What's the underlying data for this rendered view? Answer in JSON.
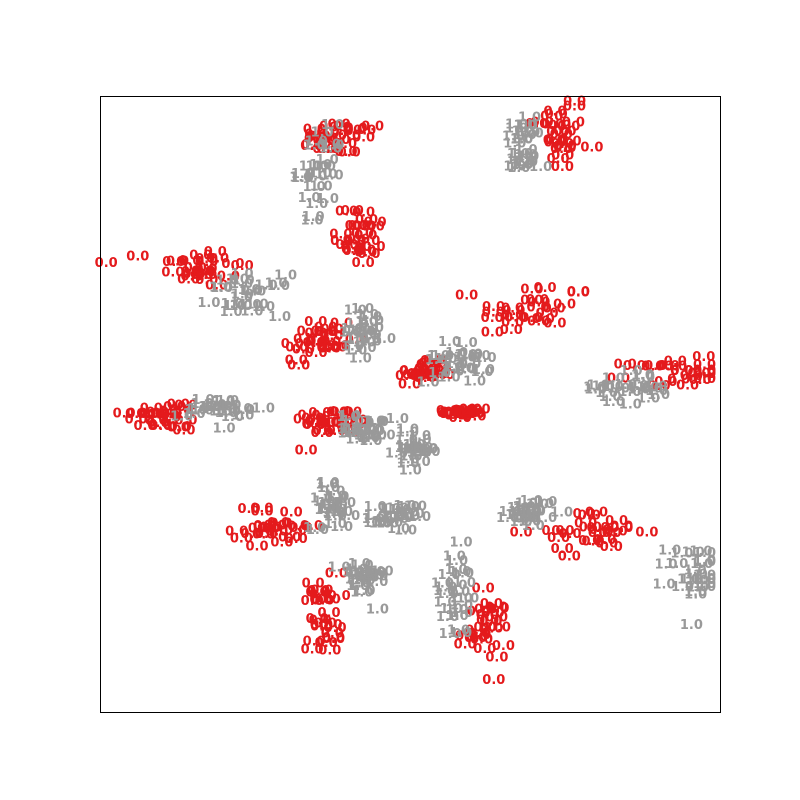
{
  "chart_data": {
    "type": "scatter",
    "title": "",
    "xlabel": "",
    "ylabel": "",
    "xlim": [
      -1,
      1
    ],
    "ylim": [
      -1,
      1
    ],
    "axes_visible": false,
    "ticks": "none",
    "grid": false,
    "legend": "none",
    "marker": "text labels",
    "series": [
      {
        "label_text": "0.0",
        "color": "#e41a1c",
        "clusters": [
          {
            "x": 0.48,
            "y": 0.88,
            "sx": 0.07,
            "sy": 0.12
          },
          {
            "x": -0.22,
            "y": 0.86,
            "sx": 0.12,
            "sy": 0.05
          },
          {
            "x": -0.16,
            "y": 0.55,
            "sx": 0.06,
            "sy": 0.1
          },
          {
            "x": -0.68,
            "y": 0.44,
            "sx": 0.14,
            "sy": 0.06
          },
          {
            "x": -0.3,
            "y": 0.2,
            "sx": 0.1,
            "sy": 0.08
          },
          {
            "x": -0.78,
            "y": -0.04,
            "sx": 0.12,
            "sy": 0.05
          },
          {
            "x": -0.25,
            "y": -0.06,
            "sx": 0.1,
            "sy": 0.04
          },
          {
            "x": 0.4,
            "y": 0.3,
            "sx": 0.16,
            "sy": 0.09
          },
          {
            "x": 0.05,
            "y": 0.1,
            "sx": 0.06,
            "sy": 0.03
          },
          {
            "x": 0.85,
            "y": 0.1,
            "sx": 0.13,
            "sy": 0.04
          },
          {
            "x": 0.18,
            "y": -0.03,
            "sx": 0.05,
            "sy": 0.02
          },
          {
            "x": 0.58,
            "y": -0.42,
            "sx": 0.16,
            "sy": 0.06
          },
          {
            "x": -0.42,
            "y": -0.4,
            "sx": 0.12,
            "sy": 0.06
          },
          {
            "x": -0.28,
            "y": -0.68,
            "sx": 0.04,
            "sy": 0.12
          },
          {
            "x": 0.24,
            "y": -0.74,
            "sx": 0.06,
            "sy": 0.1
          }
        ]
      },
      {
        "label_text": "1.0",
        "color": "#999999",
        "clusters": [
          {
            "x": 0.36,
            "y": 0.83,
            "sx": 0.04,
            "sy": 0.1
          },
          {
            "x": -0.29,
            "y": 0.76,
            "sx": 0.05,
            "sy": 0.12
          },
          {
            "x": -0.52,
            "y": 0.35,
            "sx": 0.1,
            "sy": 0.06
          },
          {
            "x": -0.15,
            "y": 0.22,
            "sx": 0.07,
            "sy": 0.08
          },
          {
            "x": -0.6,
            "y": -0.02,
            "sx": 0.12,
            "sy": 0.04
          },
          {
            "x": -0.14,
            "y": -0.08,
            "sx": 0.06,
            "sy": 0.04
          },
          {
            "x": 0.15,
            "y": 0.13,
            "sx": 0.08,
            "sy": 0.06
          },
          {
            "x": 0.7,
            "y": 0.05,
            "sx": 0.12,
            "sy": 0.05
          },
          {
            "x": 0.39,
            "y": -0.35,
            "sx": 0.06,
            "sy": 0.04
          },
          {
            "x": 0.93,
            "y": -0.55,
            "sx": 0.08,
            "sy": 0.08
          },
          {
            "x": -0.05,
            "y": -0.37,
            "sx": 0.06,
            "sy": 0.04
          },
          {
            "x": -0.15,
            "y": -0.57,
            "sx": 0.06,
            "sy": 0.06
          },
          {
            "x": 0.14,
            "y": -0.62,
            "sx": 0.06,
            "sy": 0.14
          },
          {
            "x": -0.25,
            "y": -0.33,
            "sx": 0.05,
            "sy": 0.07
          },
          {
            "x": 0.02,
            "y": -0.15,
            "sx": 0.05,
            "sy": 0.05
          }
        ]
      }
    ]
  }
}
